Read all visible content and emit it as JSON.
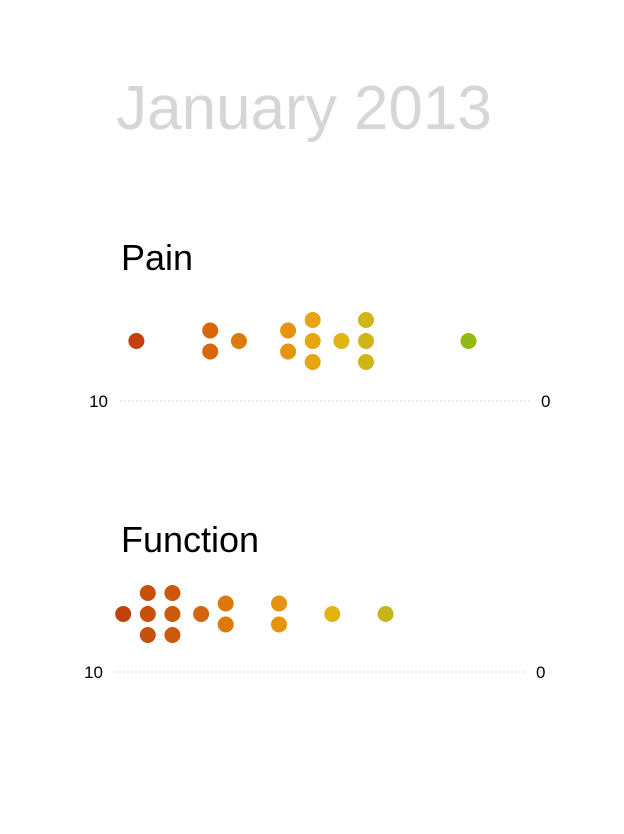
{
  "month_title": "January 2013",
  "chart_data": [
    {
      "type": "scatter",
      "title": "Pain",
      "x_min_label": "10",
      "x_max_label": "0",
      "xlim": [
        10,
        0
      ],
      "points": [
        {
          "x": 9.6,
          "color": "#c2410c"
        },
        {
          "x": 7.8,
          "color": "#d9660a"
        },
        {
          "x": 7.8,
          "color": "#d9660a"
        },
        {
          "x": 7.1,
          "color": "#de7a0c"
        },
        {
          "x": 5.9,
          "color": "#e69410"
        },
        {
          "x": 5.9,
          "color": "#e69410"
        },
        {
          "x": 5.3,
          "color": "#e8a50e"
        },
        {
          "x": 5.3,
          "color": "#e8a50e"
        },
        {
          "x": 5.3,
          "color": "#e8a50e"
        },
        {
          "x": 4.6,
          "color": "#e2b410"
        },
        {
          "x": 4.0,
          "color": "#cfb516"
        },
        {
          "x": 4.0,
          "color": "#cfb516"
        },
        {
          "x": 4.0,
          "color": "#cfb516"
        },
        {
          "x": 1.5,
          "color": "#8fbc0f"
        }
      ]
    },
    {
      "type": "scatter",
      "title": "Function",
      "x_min_label": "10",
      "x_max_label": "0",
      "xlim": [
        10,
        0
      ],
      "points": [
        {
          "x": 9.8,
          "color": "#c2410c"
        },
        {
          "x": 9.2,
          "color": "#c7500c"
        },
        {
          "x": 9.2,
          "color": "#c7500c"
        },
        {
          "x": 9.2,
          "color": "#c7500c"
        },
        {
          "x": 8.6,
          "color": "#cc580c"
        },
        {
          "x": 8.6,
          "color": "#cc580c"
        },
        {
          "x": 8.6,
          "color": "#cc580c"
        },
        {
          "x": 7.9,
          "color": "#d6640c"
        },
        {
          "x": 7.3,
          "color": "#de780c"
        },
        {
          "x": 7.3,
          "color": "#de780c"
        },
        {
          "x": 6.0,
          "color": "#e69410"
        },
        {
          "x": 6.0,
          "color": "#e69410"
        },
        {
          "x": 4.7,
          "color": "#e2b410"
        },
        {
          "x": 3.4,
          "color": "#c7b418"
        }
      ]
    }
  ]
}
